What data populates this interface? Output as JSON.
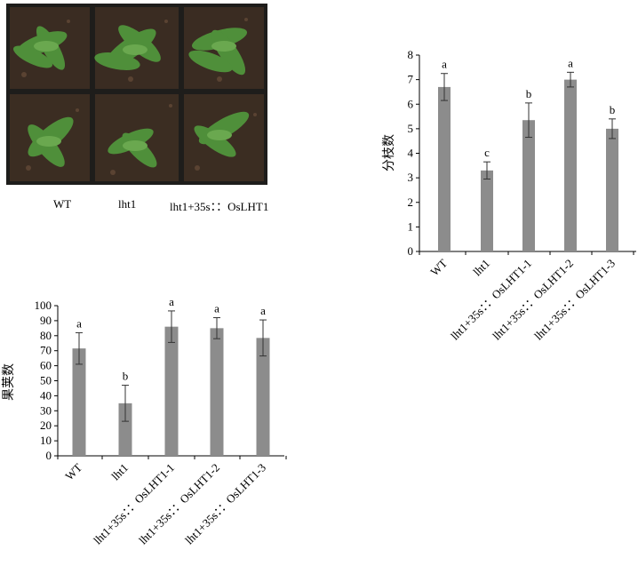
{
  "photo": {
    "labels": [
      "WT",
      "lht1",
      "lht1+35s：：OsLHT1"
    ]
  },
  "chart_data": [
    {
      "type": "bar",
      "title": "",
      "xlabel": "",
      "ylabel": "分枝数",
      "ylim": [
        0,
        8
      ],
      "yticks": [
        0,
        1,
        2,
        3,
        4,
        5,
        6,
        7,
        8
      ],
      "categories": [
        "WT",
        "lht1",
        "lht1+35s：：OsLHT1-1",
        "lht1+35s：：OsLHT1-2",
        "lht1+35s：：OsLHT1-3"
      ],
      "values": [
        6.7,
        3.3,
        5.35,
        7.0,
        5.0
      ],
      "errors": [
        0.55,
        0.35,
        0.7,
        0.3,
        0.4
      ],
      "significance": [
        "a",
        "c",
        "b",
        "a",
        "b"
      ],
      "color": "#8c8c8c",
      "grid": false
    },
    {
      "type": "bar",
      "title": "",
      "xlabel": "",
      "ylabel": "果荚数",
      "ylim": [
        0,
        100
      ],
      "yticks": [
        0,
        10,
        20,
        30,
        40,
        50,
        60,
        70,
        80,
        90,
        100
      ],
      "categories": [
        "WT",
        "lht1",
        "lht1+35s：：OsLHT1-1",
        "lht1+35s：：OsLHT1-2",
        "lht1+35s：：OsLHT1-3"
      ],
      "values": [
        71.5,
        35,
        86,
        85,
        78.5
      ],
      "errors": [
        10.5,
        12,
        10.5,
        7,
        12
      ],
      "significance": [
        "a",
        "b",
        "a",
        "a",
        "a"
      ],
      "color": "#8c8c8c",
      "grid": false
    }
  ]
}
